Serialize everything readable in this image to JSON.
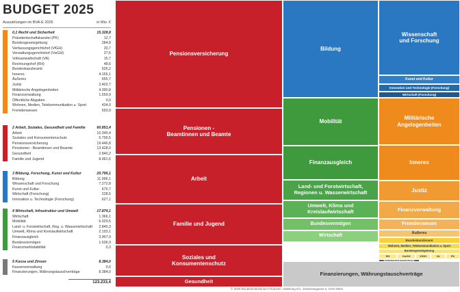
{
  "title": "BUDGET  2025",
  "subtitle": "Auszahlungen im BVA-E 2025",
  "unit": "in Mio. €",
  "footer": "© 2025 Bundesministerium Finanzen, Abteilung II/1, Johannesgasse 5, 1010 Wien",
  "total": "123.233,4",
  "colors": {
    "g1": "#ef8a1d",
    "g2": "#c8202a",
    "g3": "#2a77c2",
    "g4": "#3f9a3e",
    "g5": "#7a7a7a"
  },
  "groups": [
    {
      "key": "g1",
      "name": "0,1 Recht und Sicherheit",
      "value": "15.328,8",
      "items": [
        [
          "Präsidentschaftskanzlei (PK)",
          "12,7"
        ],
        [
          "Bundesgesetzgebung",
          "284,8"
        ],
        [
          "Verfassungsgerichtshof (VfGH)",
          "20,7"
        ],
        [
          "Verwaltungsgerichtshof (VwGH)",
          "27,6"
        ],
        [
          "Volksanwaltschaft (VA)",
          "15,7"
        ],
        [
          "Rechnungshof (RH)",
          "48,6"
        ],
        [
          "Bundeskanzleramt",
          "626,2"
        ],
        [
          "Inneres",
          "4.155,1"
        ],
        [
          "Äußeres",
          "655,7"
        ],
        [
          "Justiz",
          "2.402,7"
        ],
        [
          "Militärische Angelegenheiten",
          "4.390,8"
        ],
        [
          "Finanzverwaltung",
          "1.559,9"
        ],
        [
          "Öffentliche Abgaben",
          "0,0"
        ],
        [
          "Wohnen, Medien, Telekommunikation u. Sport",
          "434,0"
        ],
        [
          "Fremdenwesen",
          "693,9"
        ]
      ]
    },
    {
      "key": "g2",
      "name": "2 Arbeit, Soziales, Gesundheit und Familie",
      "value": "60.851,4",
      "items": [
        [
          "Arbeit",
          "10.345,4"
        ],
        [
          "Soziales und Konsumentenschutz",
          "5.799,5"
        ],
        [
          "Pensionsversicherung",
          "19.446,8"
        ],
        [
          "Pensionen - Beamtinnen und Beamte",
          "13.428,0"
        ],
        [
          "Gesundheit",
          "2.840,2"
        ],
        [
          "Familie und Jugend",
          "8.991,6"
        ]
      ]
    },
    {
      "key": "g3",
      "name": "3 Bildung, Forschung, Kunst und Kultur",
      "value": "20.795,1",
      "items": [
        [
          "Bildung",
          "11.996,1"
        ],
        [
          "Wissenschaft und Forschung",
          "7.272,8"
        ],
        [
          "Kunst und Kultur",
          "670,7"
        ],
        [
          "Wirtschaft (Forschung)",
          "228,5"
        ],
        [
          "Innovation u. Technologie (Forschung)",
          "627,1"
        ]
      ]
    },
    {
      "key": "g4",
      "name": "4 Wirtschaft, Infrastruktur und Umwelt",
      "value": "17.874,1",
      "items": [
        [
          "Wirtschaft",
          "1.366,1"
        ],
        [
          "Mobilität",
          "6.029,5"
        ],
        [
          "Land- u. Forstwirtschaft, Reg. u. Wasserwirtschaft",
          "2.840,3"
        ],
        [
          "Umwelt, Klima und Kreislaufwirtschaft",
          "2.193,1"
        ],
        [
          "Finanzausgleich",
          "3.907,9"
        ],
        [
          "Bundesvermögen",
          "1.536,9"
        ],
        [
          "Finanzmarktstabilität",
          "0,3"
        ]
      ]
    },
    {
      "key": "g5",
      "name": "5 Kassa und Zinsen",
      "value": "8.384,0",
      "items": [
        [
          "Kassenverwaltung",
          "0,0"
        ],
        [
          "Finanzierungen, Währungstauschverträge",
          "8.384,0"
        ]
      ]
    }
  ],
  "chart_data": {
    "type": "treemap",
    "title": "BUDGET  2025",
    "unit": "Mio. €",
    "tiles": [
      {
        "label": "Pensionsversicherung",
        "group": "g2",
        "value": 19446.8
      },
      {
        "label": "Pensionen -\nBeamtinnen und Beamte",
        "group": "g2",
        "value": 13428.0
      },
      {
        "label": "Arbeit",
        "group": "g2",
        "value": 10345.4
      },
      {
        "label": "Familie und Jugend",
        "group": "g2",
        "value": 8991.6
      },
      {
        "label": "Soziales und\nKonsumentenschutz",
        "group": "g2",
        "value": 5799.5
      },
      {
        "label": "Gesundheit",
        "group": "g2",
        "value": 2840.2
      },
      {
        "label": "Bildung",
        "group": "g3",
        "value": 11996.1
      },
      {
        "label": "Wissenschaft\nund Forschung",
        "group": "g3",
        "value": 7272.8
      },
      {
        "label": "Kunst und Kultur",
        "group": "g3",
        "value": 670.7
      },
      {
        "label": "Innovation und Technologie (Forschung)",
        "group": "g3",
        "value": 627.1
      },
      {
        "label": "Wirtschaft (Forschung)",
        "group": "g3",
        "value": 228.5
      },
      {
        "label": "Mobilität",
        "group": "g4",
        "value": 6029.5
      },
      {
        "label": "Finanzausgleich",
        "group": "g4",
        "value": 3907.9
      },
      {
        "label": "Land- und Forstwirtschaft,\nRegionen u. Wasserwirtschaft",
        "group": "g4",
        "value": 2840.3
      },
      {
        "label": "Umwelt, Klima und\nKreislaufwirtschaft",
        "group": "g4",
        "value": 2193.1
      },
      {
        "label": "Bundesvermögen",
        "group": "g4",
        "value": 1536.9
      },
      {
        "label": "Wirtschaft",
        "group": "g4",
        "value": 1366.1
      },
      {
        "label": "Finanzmarktstabilität",
        "group": "g4",
        "value": 0.3
      },
      {
        "label": "Militärische\nAngelegenheiten",
        "group": "g1",
        "value": 4390.8
      },
      {
        "label": "Inneres",
        "group": "g1",
        "value": 4155.1
      },
      {
        "label": "Justiz",
        "group": "g1",
        "value": 2402.7
      },
      {
        "label": "Finanzverwaltung",
        "group": "g1",
        "value": 1559.9
      },
      {
        "label": "Fremdenwesen",
        "group": "g1",
        "value": 693.9
      },
      {
        "label": "Äußeres",
        "group": "g1",
        "value": 655.7
      },
      {
        "label": "Bundeskanzleramt",
        "group": "g1",
        "value": 626.2
      },
      {
        "label": "Wohnen, Medien, Telekommunikation u. Sport",
        "group": "g1",
        "value": 434.0
      },
      {
        "label": "Bundesgesetzgebung",
        "group": "g1",
        "value": 284.8
      },
      {
        "label": "RH",
        "group": "g1",
        "value": 48.6
      },
      {
        "label": "VwGH",
        "group": "g1",
        "value": 27.6
      },
      {
        "label": "VfGH",
        "group": "g1",
        "value": 20.7
      },
      {
        "label": "VA",
        "group": "g1",
        "value": 15.7
      },
      {
        "label": "PK",
        "group": "g1",
        "value": 12.7
      },
      {
        "label": "Finanzierungen, Währungstauschverträge",
        "group": "g5",
        "value": 8384.0
      }
    ]
  }
}
